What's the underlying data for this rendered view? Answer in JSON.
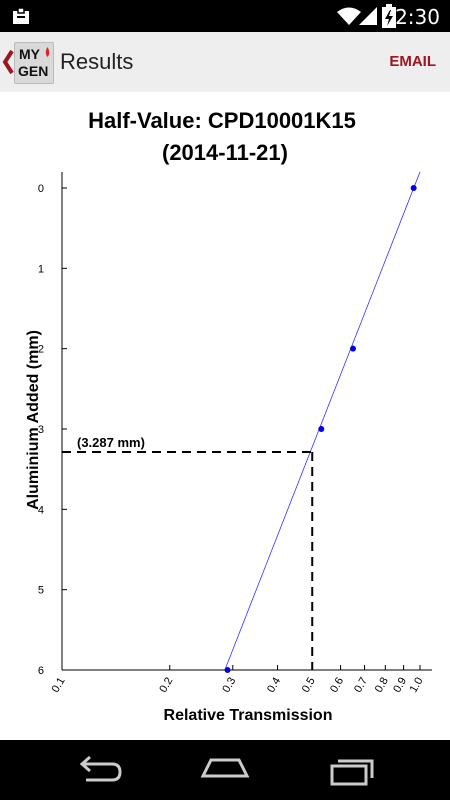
{
  "status_bar": {
    "time": "2:30",
    "icons": [
      "clipboard-icon",
      "wifi-icon",
      "signal-icon",
      "battery-charging-icon"
    ]
  },
  "action_bar": {
    "logo_text": [
      "MY",
      "GEN"
    ],
    "title": "Results",
    "email_label": "EMAIL"
  },
  "chart_data": {
    "type": "scatter",
    "title_lines": [
      "Half-Value: CPD10001K15",
      "(2014-11-21)"
    ],
    "xlabel": "Relative Transmission",
    "ylabel": "Aluminium Added (mm)",
    "x_scale": "log",
    "xlim": [
      0.1,
      1.0
    ],
    "ylim": [
      0,
      6
    ],
    "y_inverted": true,
    "x_ticks": [
      0.1,
      0.2,
      0.3,
      0.4,
      0.5,
      0.6,
      0.7,
      0.8,
      0.9,
      1.0
    ],
    "x_tick_labels": [
      "0.1",
      "0.2",
      "0.3",
      "0.4",
      "0.5",
      "0.6",
      "0.7",
      "0.8",
      "0.9",
      "1.0"
    ],
    "y_ticks": [
      0,
      1,
      2,
      3,
      4,
      5,
      6
    ],
    "y_tick_labels": [
      "0",
      "1",
      "2",
      "3",
      "4",
      "5",
      "6"
    ],
    "points": [
      {
        "x": 0.96,
        "y": 0
      },
      {
        "x": 0.65,
        "y": 2
      },
      {
        "x": 0.53,
        "y": 3
      },
      {
        "x": 0.29,
        "y": 6
      }
    ],
    "fit_line": {
      "x": [
        1.0,
        0.285
      ],
      "y": [
        -0.2,
        6
      ]
    },
    "half_value": {
      "x": 0.5,
      "y": 3.287,
      "label": "(3.287 mm)"
    },
    "colors": {
      "points": "#0000ee",
      "fit_line": "#3333ff",
      "axes": "#000000"
    }
  },
  "nav_bar": {
    "buttons": [
      "back-nav-button",
      "home-nav-button",
      "recents-nav-button"
    ]
  }
}
